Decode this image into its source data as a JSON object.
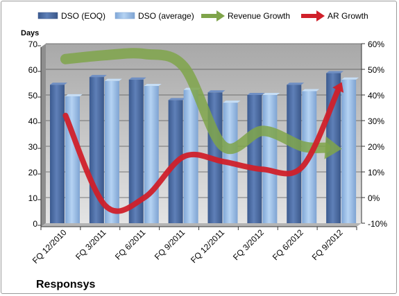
{
  "chart_data": {
    "type": "bar",
    "title": "Responsys",
    "ylabel": "Days",
    "categories": [
      "FQ 12/2010",
      "FQ 3/2011",
      "FQ 6/2011",
      "FQ 9/2011",
      "FQ 12/2011",
      "FQ 3/2012",
      "FQ 6/2012",
      "FQ 9/2012"
    ],
    "ylim": [
      0,
      70
    ],
    "yticks": [
      "0",
      "10",
      "20",
      "30",
      "40",
      "50",
      "60",
      "70"
    ],
    "y2lim": [
      -10,
      60
    ],
    "y2ticks": [
      "-10%",
      "0%",
      "10%",
      "20%",
      "30%",
      "40%",
      "50%",
      "60%"
    ],
    "grid": true,
    "legend_position": "top",
    "series": [
      {
        "name": "DSO (EOQ)",
        "type": "bar",
        "axis": "left",
        "color": "#4f6fa3",
        "values": [
          54,
          57,
          56,
          48,
          51,
          50,
          54,
          58.5
        ]
      },
      {
        "name": "DSO (average)",
        "type": "bar",
        "axis": "left",
        "color": "#9cc0ea",
        "values": [
          49.5,
          55.5,
          53.5,
          52,
          47,
          50,
          51.5,
          56
        ]
      },
      {
        "name": "Revenue Growth",
        "type": "line",
        "axis": "right",
        "color": "#7fa44a",
        "values": [
          54,
          55.5,
          56,
          51,
          20,
          26,
          20,
          19
        ]
      },
      {
        "name": "AR Growth",
        "type": "line",
        "axis": "right",
        "color": "#d0202a",
        "values": [
          32,
          -3,
          0,
          16,
          14,
          11,
          12,
          45
        ]
      }
    ]
  }
}
